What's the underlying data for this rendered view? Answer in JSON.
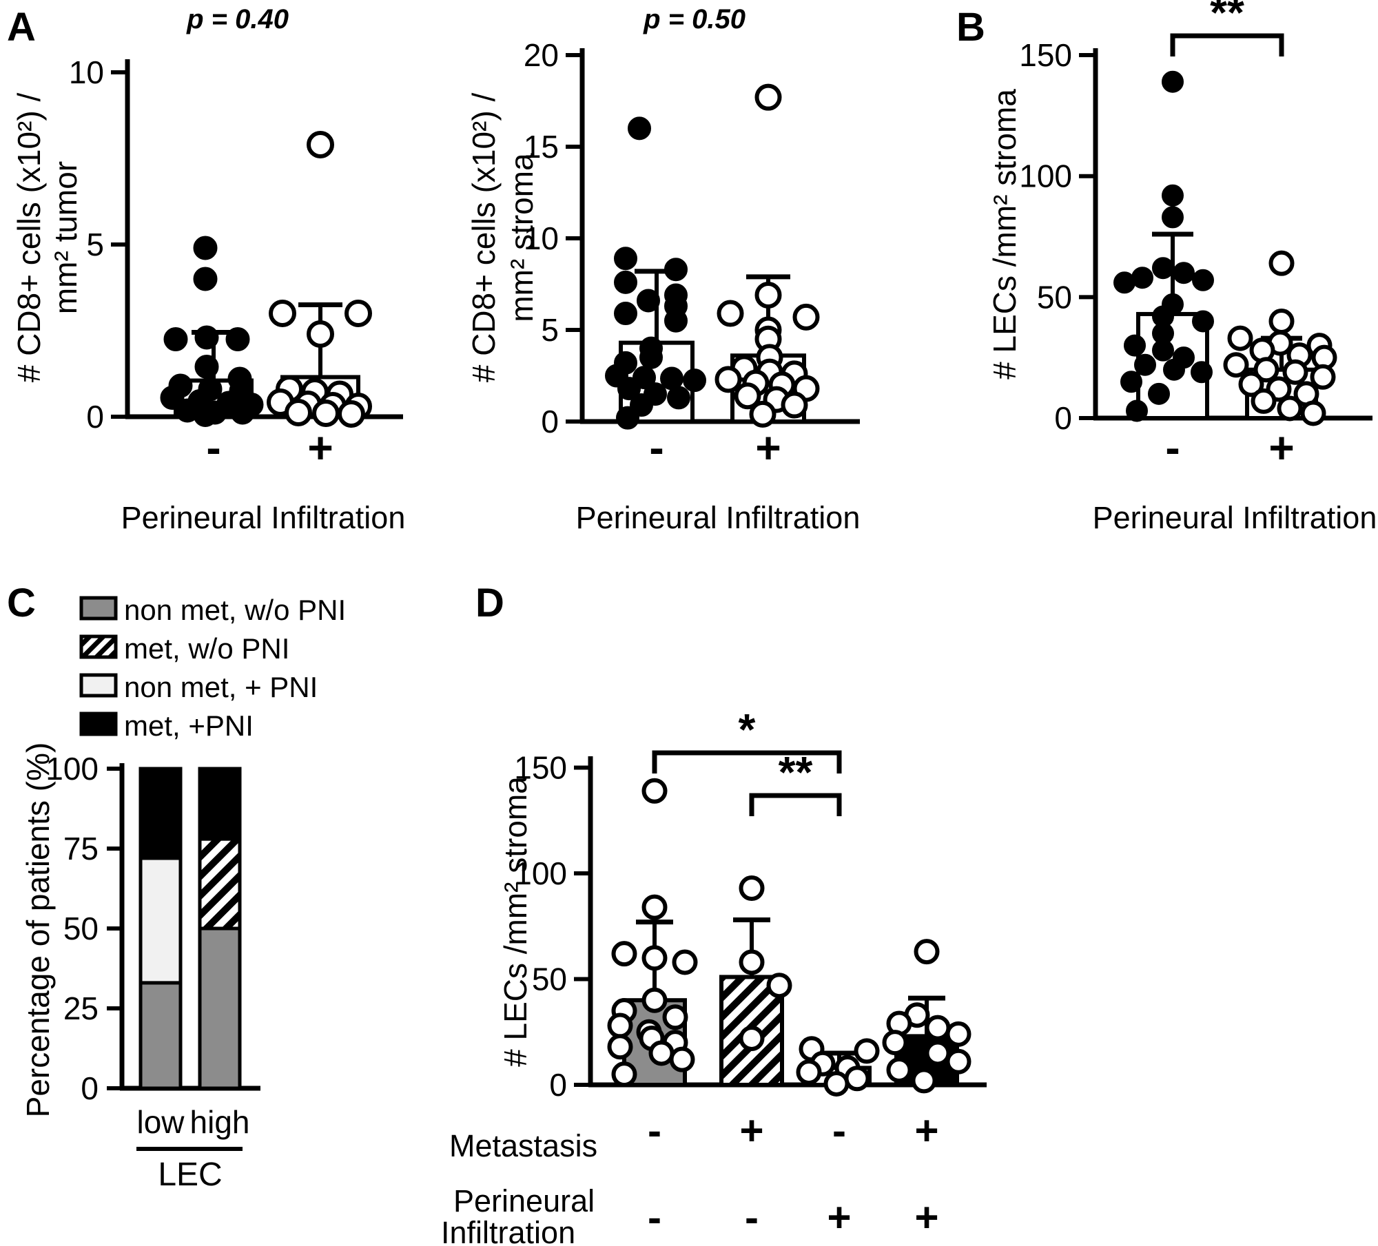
{
  "figure": {
    "panels": {
      "a": "A",
      "b": "B",
      "c": "C",
      "d": "D"
    }
  },
  "colors": {
    "gray": "#8c8c8c",
    "light": "#f1f1f1",
    "black": "#000000",
    "white": "#ffffff",
    "axis": "#000000"
  },
  "chart_data": [
    {
      "id": "a_left",
      "type": "scatter-bar",
      "title": "p = 0.40",
      "ylabel_line1": "# CD8+ cells (x10²) /",
      "ylabel_line2": "mm² tumor",
      "xlabel": "Perineural Infiltration",
      "ylim": [
        0,
        10
      ],
      "yticks": [
        0,
        5,
        10
      ],
      "categories": [
        "-",
        "+"
      ],
      "series": [
        {
          "name": "PNI negative",
          "symbol": "filled-circle",
          "bar_fill": "white",
          "bar_mean": 1.05,
          "sd_top": 2.45,
          "points": [
            {
              "v": 4.9,
              "dx": -12
            },
            {
              "v": 4.0,
              "dx": -12
            },
            {
              "v": 2.25,
              "dx": -55
            },
            {
              "v": 2.3,
              "dx": -10
            },
            {
              "v": 2.25,
              "dx": 35
            },
            {
              "v": 1.45,
              "dx": -10
            },
            {
              "v": 1.1,
              "dx": 38
            },
            {
              "v": 0.9,
              "dx": -48
            },
            {
              "v": 0.8,
              "dx": -5
            },
            {
              "v": 0.75,
              "dx": 40
            },
            {
              "v": 0.55,
              "dx": -60
            },
            {
              "v": 0.45,
              "dx": -20
            },
            {
              "v": 0.4,
              "dx": 22
            },
            {
              "v": 0.35,
              "dx": 55
            },
            {
              "v": 0.18,
              "dx": -38
            },
            {
              "v": 0.12,
              "dx": 2
            },
            {
              "v": 0.12,
              "dx": 42
            },
            {
              "v": 0.05,
              "dx": -12
            }
          ]
        },
        {
          "name": "PNI positive",
          "symbol": "open-circle",
          "bar_fill": "white",
          "bar_mean": 1.15,
          "sd_top": 3.25,
          "points": [
            {
              "v": 7.9,
              "dx": 0
            },
            {
              "v": 3.0,
              "dx": -55
            },
            {
              "v": 3.0,
              "dx": 55
            },
            {
              "v": 2.4,
              "dx": 0
            },
            {
              "v": 0.8,
              "dx": -45
            },
            {
              "v": 0.72,
              "dx": -8
            },
            {
              "v": 0.65,
              "dx": 28
            },
            {
              "v": 0.42,
              "dx": -58
            },
            {
              "v": 0.36,
              "dx": -18
            },
            {
              "v": 0.32,
              "dx": 18
            },
            {
              "v": 0.3,
              "dx": 55
            },
            {
              "v": 0.12,
              "dx": -32
            },
            {
              "v": 0.1,
              "dx": 8
            },
            {
              "v": 0.08,
              "dx": 45
            }
          ]
        }
      ]
    },
    {
      "id": "a_right",
      "type": "scatter-bar",
      "title": "p = 0.50",
      "ylabel_line1": "# CD8+ cells (x10²) /",
      "ylabel_line2": "mm² stroma",
      "xlabel": "Perineural Infiltration",
      "ylim": [
        0,
        20
      ],
      "yticks": [
        0,
        5,
        10,
        15,
        20
      ],
      "categories": [
        "-",
        "+"
      ],
      "series": [
        {
          "name": "PNI negative",
          "symbol": "filled-circle",
          "bar_fill": "white",
          "bar_mean": 4.3,
          "sd_top": 8.2,
          "points": [
            {
              "v": 16,
              "dx": -25
            },
            {
              "v": 8.9,
              "dx": -45
            },
            {
              "v": 8.3,
              "dx": 28
            },
            {
              "v": 7.6,
              "dx": -45
            },
            {
              "v": 6.9,
              "dx": 28
            },
            {
              "v": 6.6,
              "dx": -12
            },
            {
              "v": 6.3,
              "dx": 28
            },
            {
              "v": 5.9,
              "dx": -45
            },
            {
              "v": 5.5,
              "dx": 28
            },
            {
              "v": 4.0,
              "dx": -8
            },
            {
              "v": 3.5,
              "dx": -8
            },
            {
              "v": 3.2,
              "dx": -45
            },
            {
              "v": 2.5,
              "dx": -58
            },
            {
              "v": 2.4,
              "dx": -18
            },
            {
              "v": 2.35,
              "dx": 22
            },
            {
              "v": 2.25,
              "dx": 55
            },
            {
              "v": 1.8,
              "dx": -40
            },
            {
              "v": 1.5,
              "dx": -2
            },
            {
              "v": 1.3,
              "dx": 32
            },
            {
              "v": 0.9,
              "dx": -22
            },
            {
              "v": 0.2,
              "dx": -42
            }
          ]
        },
        {
          "name": "PNI positive",
          "symbol": "open-circle",
          "bar_fill": "white",
          "bar_mean": 3.6,
          "sd_top": 7.9,
          "points": [
            {
              "v": 17.7,
              "dx": 0
            },
            {
              "v": 6.9,
              "dx": 0
            },
            {
              "v": 5.9,
              "dx": -55
            },
            {
              "v": 5.7,
              "dx": 55
            },
            {
              "v": 5.0,
              "dx": 0
            },
            {
              "v": 4.5,
              "dx": 0
            },
            {
              "v": 3.5,
              "dx": 2
            },
            {
              "v": 2.9,
              "dx": -35
            },
            {
              "v": 2.7,
              "dx": 2
            },
            {
              "v": 2.6,
              "dx": 38
            },
            {
              "v": 2.3,
              "dx": -58
            },
            {
              "v": 2.1,
              "dx": -18
            },
            {
              "v": 2.0,
              "dx": 20
            },
            {
              "v": 1.8,
              "dx": 55
            },
            {
              "v": 1.4,
              "dx": -30
            },
            {
              "v": 1.2,
              "dx": 12
            },
            {
              "v": 0.9,
              "dx": 38
            },
            {
              "v": 0.4,
              "dx": -8
            }
          ]
        }
      ]
    },
    {
      "id": "b",
      "type": "scatter-bar",
      "ylabel": "# LECs /mm² stroma",
      "xlabel": "Perineural Infiltration",
      "ylim": [
        0,
        150
      ],
      "yticks": [
        0,
        50,
        100,
        150
      ],
      "categories": [
        "-",
        "+"
      ],
      "significance": [
        {
          "from": 0,
          "to": 1,
          "label": "**"
        }
      ],
      "series": [
        {
          "name": "PNI negative",
          "symbol": "filled-circle",
          "bar_fill": "white",
          "bar_mean": 43,
          "sd_top": 76,
          "points": [
            {
              "v": 139,
              "dx": 0
            },
            {
              "v": 92,
              "dx": 0
            },
            {
              "v": 83,
              "dx": 0
            },
            {
              "v": 62,
              "dx": -14
            },
            {
              "v": 60,
              "dx": 16
            },
            {
              "v": 58,
              "dx": -44
            },
            {
              "v": 57,
              "dx": 44
            },
            {
              "v": 56,
              "dx": -70
            },
            {
              "v": 47,
              "dx": 0
            },
            {
              "v": 42,
              "dx": -14
            },
            {
              "v": 40,
              "dx": 44
            },
            {
              "v": 35,
              "dx": -14
            },
            {
              "v": 30,
              "dx": -55
            },
            {
              "v": 28,
              "dx": -14
            },
            {
              "v": 25,
              "dx": 16
            },
            {
              "v": 22,
              "dx": -40
            },
            {
              "v": 20,
              "dx": 2
            },
            {
              "v": 19,
              "dx": 42
            },
            {
              "v": 15,
              "dx": -60
            },
            {
              "v": 10,
              "dx": -20
            },
            {
              "v": 3,
              "dx": -52
            }
          ]
        },
        {
          "name": "PNI positive",
          "symbol": "open-circle",
          "bar_fill": "white",
          "bar_mean": 20,
          "sd_top": 33,
          "points": [
            {
              "v": 64,
              "dx": 0
            },
            {
              "v": 40,
              "dx": 0
            },
            {
              "v": 33,
              "dx": -60
            },
            {
              "v": 31,
              "dx": -2
            },
            {
              "v": 30,
              "dx": 55
            },
            {
              "v": 28,
              "dx": -28
            },
            {
              "v": 26,
              "dx": 26
            },
            {
              "v": 25,
              "dx": 62
            },
            {
              "v": 22,
              "dx": -66
            },
            {
              "v": 20,
              "dx": -22
            },
            {
              "v": 19,
              "dx": 20
            },
            {
              "v": 17,
              "dx": 60
            },
            {
              "v": 14,
              "dx": -44
            },
            {
              "v": 12,
              "dx": -4
            },
            {
              "v": 10,
              "dx": 36
            },
            {
              "v": 7,
              "dx": -26
            },
            {
              "v": 4,
              "dx": 12
            },
            {
              "v": 2,
              "dx": 46
            }
          ]
        }
      ]
    },
    {
      "id": "c",
      "type": "stacked-bar",
      "ylabel": "Percentage of patients (%)",
      "ylim": [
        0,
        100
      ],
      "yticks": [
        0,
        25,
        50,
        75,
        100
      ],
      "categories": [
        "low",
        "high"
      ],
      "group_label": "LEC",
      "legend": [
        {
          "label": "non met, w/o PNI",
          "fill": "gray"
        },
        {
          "label": "met, w/o PNI",
          "fill": "hatch"
        },
        {
          "label": "non met, + PNI",
          "fill": "light"
        },
        {
          "label": "met, +PNI",
          "fill": "black"
        }
      ],
      "series": [
        {
          "name": "non met, w/o PNI",
          "fill": "gray",
          "values": [
            33,
            50
          ]
        },
        {
          "name": "met, w/o PNI",
          "fill": "hatch",
          "values": [
            0,
            28
          ]
        },
        {
          "name": "non met, + PNI",
          "fill": "light",
          "values": [
            39,
            0
          ]
        },
        {
          "name": "met, +PNI",
          "fill": "black",
          "values": [
            28,
            22
          ]
        }
      ]
    },
    {
      "id": "d",
      "type": "scatter-bar",
      "ylabel": "# LECs /mm² stroma",
      "ylim": [
        0,
        150
      ],
      "yticks": [
        0,
        50,
        100,
        150
      ],
      "significance": [
        {
          "from": 0,
          "to": 2,
          "label": "*"
        },
        {
          "from": 1,
          "to": 2,
          "label": "**"
        }
      ],
      "rows": {
        "metastasis_label": "Metastasis",
        "metastasis_values": [
          "-",
          "+",
          "-",
          "+"
        ],
        "pni_label_line1": "Perineural",
        "pni_label_line2": "Infiltration",
        "pni_values": [
          "-",
          "-",
          "+",
          "+"
        ]
      },
      "series": [
        {
          "name": "non met, w/o PNI",
          "symbol": "open-circle",
          "bar_fill": "gray",
          "bar_mean": 40,
          "sd_top": 77,
          "points": [
            {
              "v": 139,
              "dx": 0
            },
            {
              "v": 84,
              "dx": 0
            },
            {
              "v": 62,
              "dx": -44
            },
            {
              "v": 60,
              "dx": 0
            },
            {
              "v": 58,
              "dx": 44
            },
            {
              "v": 40,
              "dx": 0
            },
            {
              "v": 35,
              "dx": -44
            },
            {
              "v": 32,
              "dx": 30
            },
            {
              "v": 28,
              "dx": -50
            },
            {
              "v": 25,
              "dx": -8
            },
            {
              "v": 22,
              "dx": -4
            },
            {
              "v": 20,
              "dx": 30
            },
            {
              "v": 18,
              "dx": -50
            },
            {
              "v": 15,
              "dx": 10
            },
            {
              "v": 12,
              "dx": 40
            },
            {
              "v": 5,
              "dx": -44
            }
          ]
        },
        {
          "name": "met, w/o PNI",
          "symbol": "open-circle",
          "bar_fill": "hatch",
          "bar_mean": 51,
          "sd_top": 78,
          "points": [
            {
              "v": 93,
              "dx": 0
            },
            {
              "v": 58,
              "dx": 0
            },
            {
              "v": 47,
              "dx": 40
            },
            {
              "v": 22,
              "dx": 0
            }
          ]
        },
        {
          "name": "non met, + PNI",
          "symbol": "open-circle",
          "bar_fill": "white",
          "bar_mean": 8,
          "sd_top": 15,
          "points": [
            {
              "v": 17,
              "dx": -40
            },
            {
              "v": 16,
              "dx": 40
            },
            {
              "v": 10,
              "dx": -24
            },
            {
              "v": 8,
              "dx": 12
            },
            {
              "v": 6,
              "dx": -44
            },
            {
              "v": 3,
              "dx": 26
            },
            {
              "v": 0.5,
              "dx": -4
            }
          ]
        },
        {
          "name": "met, +PNI",
          "symbol": "open-circle",
          "bar_fill": "black",
          "bar_mean": 23,
          "sd_top": 41,
          "points": [
            {
              "v": 63,
              "dx": 0
            },
            {
              "v": 33,
              "dx": -14
            },
            {
              "v": 29,
              "dx": -40
            },
            {
              "v": 27,
              "dx": 16
            },
            {
              "v": 24,
              "dx": 46
            },
            {
              "v": 20,
              "dx": -46
            },
            {
              "v": 15,
              "dx": 16
            },
            {
              "v": 11,
              "dx": 46
            },
            {
              "v": 7,
              "dx": -40
            },
            {
              "v": 2,
              "dx": -4
            }
          ]
        }
      ]
    }
  ]
}
